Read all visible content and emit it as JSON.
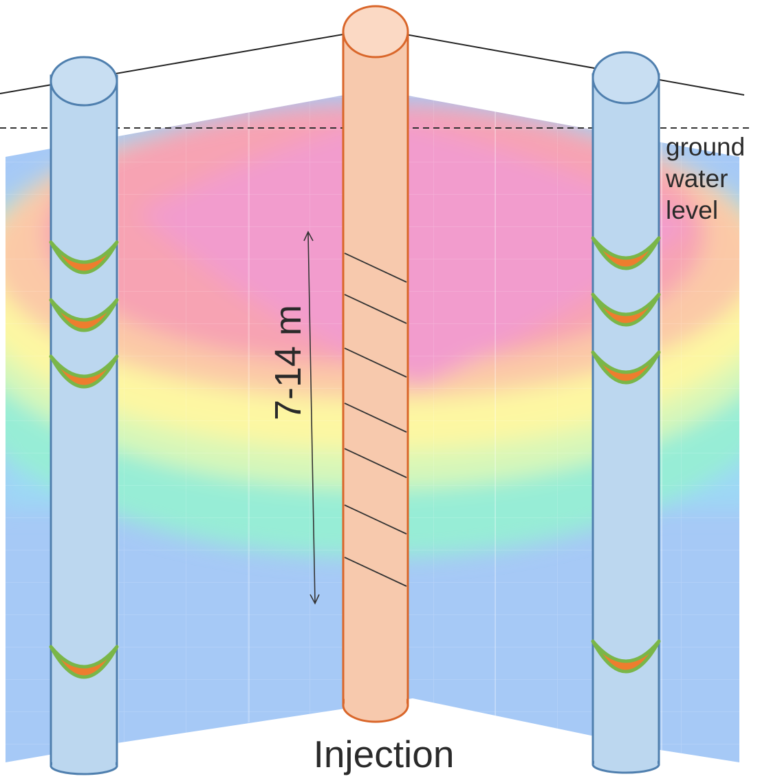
{
  "labels": {
    "groundwater_line1": "ground",
    "groundwater_line2": "water",
    "groundwater_line3": "level",
    "depth": "7-14 m",
    "injection": "Injection"
  },
  "colors": {
    "injection_well": "#f7c9ad",
    "injection_well_edge": "#d9662a",
    "monitoring_well": "#bcd7ef",
    "monitoring_well_edge": "#4f7fae",
    "sampler_orange": "#ee7d2e",
    "sampler_green": "#7ab648",
    "plume_core": "#f29ccd",
    "plume_high": "#f7a3b3",
    "plume_mid": "#fdf7a2",
    "plume_low": "#93f0cf",
    "background_water": "#a6c9f6"
  },
  "icons": {
    "left_well": "monitoring-well-icon",
    "right_well": "monitoring-well-icon",
    "center_well": "injection-well-icon",
    "sampler": "sampler-cup-icon"
  }
}
